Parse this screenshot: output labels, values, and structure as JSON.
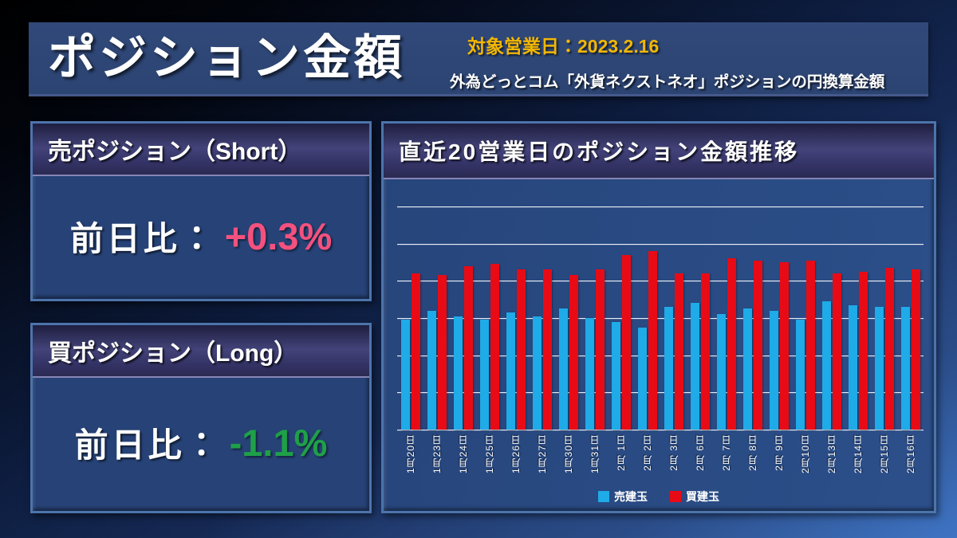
{
  "header": {
    "title": "ポジション金額",
    "date_label": "対象営業日：2023.2.16",
    "subtitle": "外為どっとコム「外貨ネクストネオ」ポジションの円換算金額"
  },
  "panels": {
    "short": {
      "title": "売ポジション（Short）",
      "label": "前日比：",
      "value": "+0.3%",
      "value_color": "#F4517E"
    },
    "long": {
      "title": "買ポジション（Long）",
      "label": "前日比：",
      "value": "-1.1%",
      "value_color": "#1FA048"
    }
  },
  "chart_data": {
    "type": "bar",
    "title": "直近20営業日のポジション金額推移",
    "categories": [
      "1月20日",
      "1月23日",
      "1月24日",
      "1月25日",
      "1月26日",
      "1月27日",
      "1月30日",
      "1月31日",
      "2月 1日",
      "2月 2日",
      "2月 3日",
      "2月 6日",
      "2月 7日",
      "2月 8日",
      "2月 9日",
      "2月10日",
      "2月13日",
      "2月14日",
      "2月15日",
      "2月16日"
    ],
    "series": [
      {
        "name": "売建玉",
        "color": "#1FAAE8",
        "values": [
          2.95,
          3.2,
          3.05,
          2.95,
          3.15,
          3.05,
          3.25,
          3.0,
          2.9,
          2.75,
          3.3,
          3.4,
          3.1,
          3.25,
          3.2,
          2.95,
          3.45,
          3.35,
          3.3,
          3.3
        ]
      },
      {
        "name": "買建玉",
        "color": "#E80B16",
        "values": [
          4.2,
          4.15,
          4.4,
          4.45,
          4.3,
          4.3,
          4.15,
          4.3,
          4.7,
          4.8,
          4.2,
          4.2,
          4.6,
          4.55,
          4.5,
          4.55,
          4.2,
          4.25,
          4.35,
          4.3
        ]
      }
    ],
    "xlabel": "",
    "ylabel": "",
    "ylim": [
      0,
      6
    ],
    "gridline_count": 7,
    "y_tick_labels_visible": false,
    "legend_position": "bottom",
    "value_scale": "relative gridline units (no numeric y-axis labels shown)"
  },
  "colors": {
    "bar_sell": "#1FAAE8",
    "bar_buy": "#E80B16",
    "accent_gold": "#F2B705",
    "positive_pink": "#F4517E",
    "negative_green": "#1FA048"
  }
}
